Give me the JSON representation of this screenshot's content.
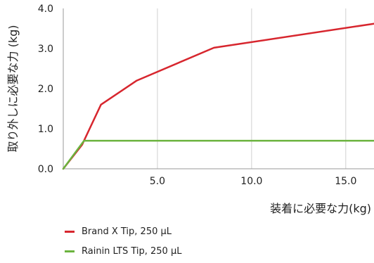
{
  "chart_data": {
    "type": "line",
    "xlabel": "装着に必要な力(kg)",
    "ylabel": "取り外しに必要な力 (kg)",
    "xlim": [
      0,
      16.5
    ],
    "ylim": [
      0,
      4.0
    ],
    "x_ticks": [
      "5.0",
      "10.0",
      "15.0"
    ],
    "y_ticks": [
      "0.0",
      "1.0",
      "2.0",
      "3.0",
      "4.0"
    ],
    "grid": "vertical",
    "legend_position": "bottom-left",
    "series": [
      {
        "name": "Brand X Tip, 250 µL",
        "color": "#d7262e",
        "x": [
          0,
          1.0,
          2.0,
          3.9,
          8.0,
          16.5
        ],
        "y": [
          0,
          0.6,
          1.6,
          2.2,
          3.02,
          3.62
        ]
      },
      {
        "name": "Rainin LTS Tip, 250 µL",
        "color": "#6bb33e",
        "x": [
          0,
          1.1,
          16.5
        ],
        "y": [
          0,
          0.7,
          0.7
        ]
      }
    ]
  }
}
